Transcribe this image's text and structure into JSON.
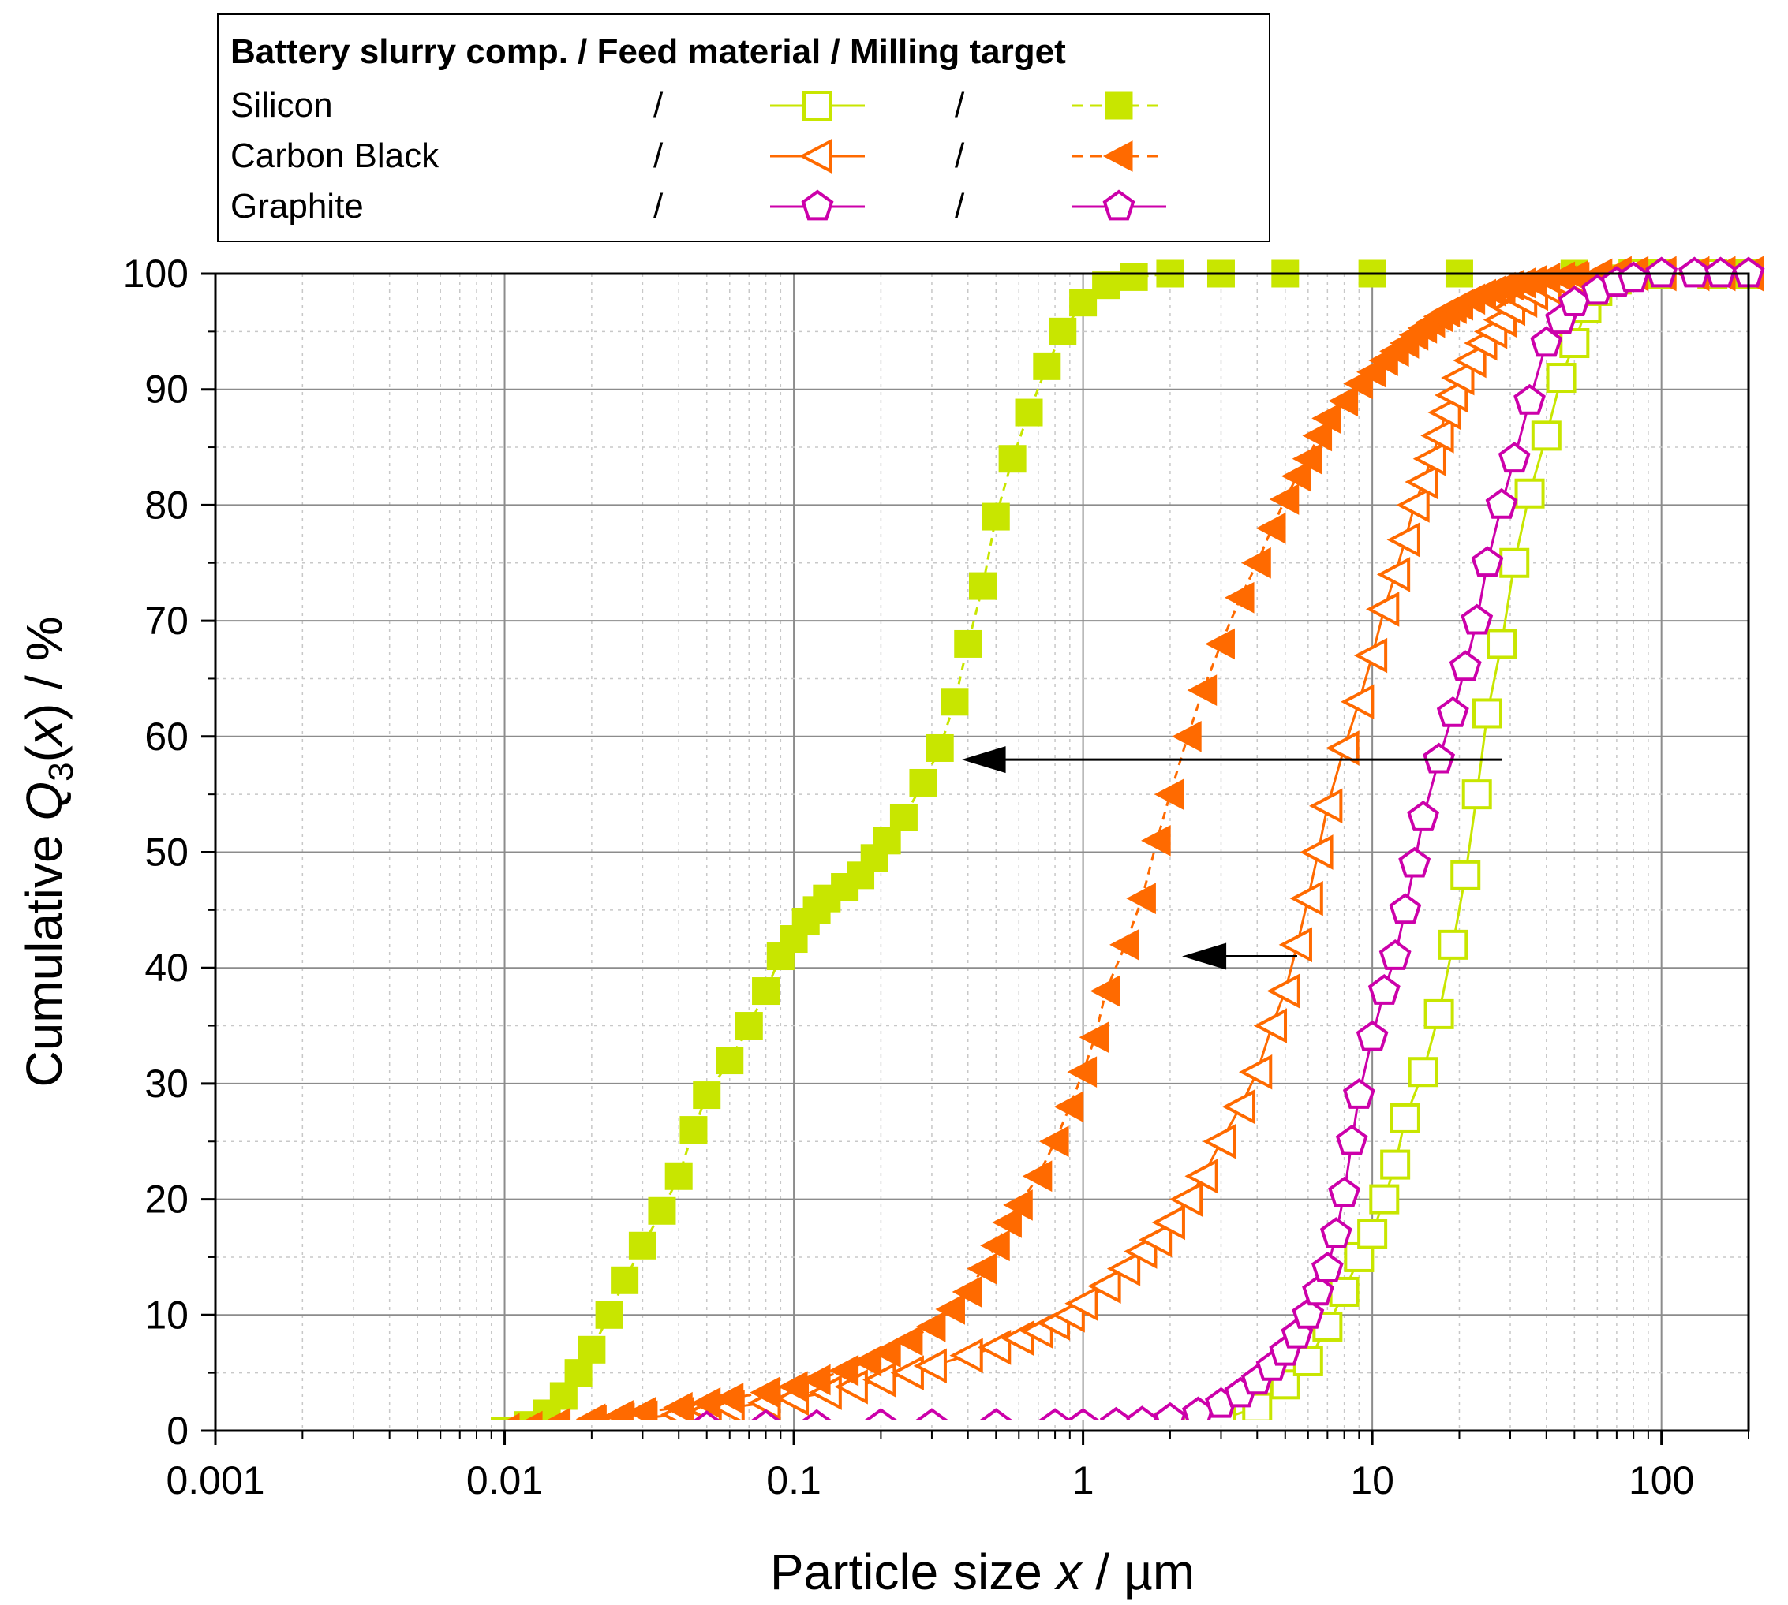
{
  "chart_data": {
    "type": "line",
    "title": "",
    "xlabel_parts": [
      "Particle size ",
      "x",
      " / µm"
    ],
    "ylabel_parts": [
      "Cumulative ",
      "Q",
      "3",
      "(",
      "x",
      ") / %"
    ],
    "x_scale": "log",
    "xlim": [
      0.001,
      200
    ],
    "ylim": [
      0,
      100
    ],
    "x_ticks": [
      0.001,
      0.01,
      0.1,
      1,
      10,
      100
    ],
    "x_tick_labels": [
      "0.001",
      "0.01",
      "0.1",
      "1",
      "10",
      "100"
    ],
    "y_ticks": [
      0,
      10,
      20,
      30,
      40,
      50,
      60,
      70,
      80,
      90,
      100
    ],
    "y_tick_labels": [
      "0",
      "10",
      "20",
      "30",
      "40",
      "50",
      "60",
      "70",
      "80",
      "90",
      "100"
    ],
    "grid": true,
    "legend": {
      "placement": "top-left, above plot",
      "header": "Battery slurry comp. / Feed material / Milling target",
      "separator": "/",
      "rows": [
        {
          "component": "Silicon",
          "color": "#c8e600",
          "feed_marker": "square-open",
          "target_marker": "square-filled"
        },
        {
          "component": "Carbon Black",
          "color": "#ff6a00",
          "feed_marker": "triangle-left-open",
          "target_marker": "triangle-left-filled"
        },
        {
          "component": "Graphite",
          "color": "#cc00aa",
          "feed_marker": "pentagon-open",
          "target_marker": "pentagon-open"
        }
      ]
    },
    "series": [
      {
        "name": "Silicon feed material",
        "color": "#c8e600",
        "marker": "square-open",
        "line": "solid",
        "x": [
          1.5,
          2,
          3,
          4,
          5,
          6,
          7,
          8,
          9,
          10,
          11,
          12,
          13,
          15,
          17,
          19,
          21,
          23,
          25,
          28,
          31,
          35,
          40,
          45,
          50,
          55,
          60,
          70,
          80,
          100,
          150,
          200
        ],
        "y": [
          0,
          0.3,
          1,
          2,
          4,
          6,
          9,
          12,
          15,
          17,
          20,
          23,
          27,
          31,
          36,
          42,
          48,
          55,
          62,
          68,
          75,
          81,
          86,
          91,
          94,
          97,
          98.5,
          99.5,
          100,
          100,
          100,
          100
        ]
      },
      {
        "name": "Silicon milling target",
        "color": "#c8e600",
        "marker": "square-filled",
        "line": "dashed",
        "x": [
          0.01,
          0.012,
          0.014,
          0.016,
          0.018,
          0.02,
          0.023,
          0.026,
          0.03,
          0.035,
          0.04,
          0.045,
          0.05,
          0.06,
          0.07,
          0.08,
          0.09,
          0.1,
          0.11,
          0.12,
          0.13,
          0.15,
          0.17,
          0.19,
          0.21,
          0.24,
          0.28,
          0.32,
          0.36,
          0.4,
          0.45,
          0.5,
          0.57,
          0.65,
          0.75,
          0.85,
          1.0,
          1.2,
          1.5,
          2,
          3,
          5,
          10,
          20,
          50,
          100,
          200
        ],
        "y": [
          0,
          0.5,
          1.5,
          3,
          5,
          7,
          10,
          13,
          16,
          19,
          22,
          26,
          29,
          32,
          35,
          38,
          41,
          42.5,
          44,
          45,
          46,
          47,
          48,
          49.5,
          51,
          53,
          56,
          59,
          63,
          68,
          73,
          79,
          84,
          88,
          92,
          95,
          97.5,
          99,
          99.7,
          100,
          100,
          100,
          100,
          100,
          100,
          100,
          100
        ]
      },
      {
        "name": "Carbon Black feed material",
        "color": "#ff6a00",
        "marker": "triangle-left-open",
        "line": "solid",
        "x": [
          0.01,
          0.012,
          0.015,
          0.02,
          0.025,
          0.03,
          0.04,
          0.05,
          0.06,
          0.08,
          0.1,
          0.13,
          0.16,
          0.2,
          0.25,
          0.3,
          0.4,
          0.5,
          0.6,
          0.7,
          0.8,
          0.9,
          1.0,
          1.2,
          1.4,
          1.6,
          1.8,
          2.0,
          2.3,
          2.6,
          3.0,
          3.5,
          4.0,
          4.5,
          5.0,
          5.5,
          6.0,
          6.5,
          7.0,
          8.0,
          9.0,
          10,
          11,
          12,
          13,
          14,
          15,
          16,
          17,
          18,
          19,
          20,
          22,
          24,
          26,
          28,
          30,
          33,
          36,
          40,
          45,
          50,
          60,
          70,
          80,
          100,
          130,
          160,
          200
        ],
        "y": [
          0,
          0.2,
          0.4,
          0.7,
          0.9,
          1.1,
          1.4,
          1.7,
          2.0,
          2.4,
          2.8,
          3.3,
          3.8,
          4.4,
          5.0,
          5.6,
          6.5,
          7.2,
          8.0,
          8.6,
          9.3,
          10,
          11,
          12.5,
          14,
          15.5,
          16.5,
          18,
          20,
          22,
          25,
          28,
          31,
          35,
          38,
          42,
          46,
          50,
          54,
          59,
          63,
          67,
          71,
          74,
          77,
          80,
          82,
          84,
          86,
          88,
          89.5,
          91,
          92.5,
          94,
          95,
          96,
          97,
          97.7,
          98.3,
          98.8,
          99.2,
          99.5,
          99.8,
          100,
          100,
          100,
          100,
          100,
          100
        ]
      },
      {
        "name": "Carbon Black milling target",
        "color": "#ff6a00",
        "marker": "triangle-left-filled",
        "line": "dashed",
        "x": [
          0.01,
          0.012,
          0.015,
          0.02,
          0.025,
          0.03,
          0.04,
          0.05,
          0.06,
          0.08,
          0.1,
          0.12,
          0.15,
          0.18,
          0.21,
          0.25,
          0.3,
          0.35,
          0.4,
          0.45,
          0.5,
          0.55,
          0.6,
          0.7,
          0.8,
          0.9,
          1.0,
          1.1,
          1.2,
          1.4,
          1.6,
          1.8,
          2.0,
          2.3,
          2.6,
          3.0,
          3.5,
          4.0,
          4.5,
          5.0,
          5.5,
          6.0,
          6.5,
          7.0,
          8.0,
          9.0,
          10,
          11,
          12,
          13,
          14,
          15,
          16,
          17,
          18,
          19,
          20,
          22,
          24,
          26,
          28,
          30,
          33,
          36,
          40,
          45,
          50,
          60,
          70,
          80,
          100,
          130,
          160,
          200
        ],
        "y": [
          0,
          0.3,
          0.6,
          1,
          1.3,
          1.6,
          2.0,
          2.4,
          2.8,
          3.3,
          3.8,
          4.4,
          5.2,
          6.0,
          6.8,
          7.8,
          9.0,
          10.5,
          12,
          14,
          16,
          18,
          19.5,
          22,
          25,
          28,
          31,
          34,
          38,
          42,
          46,
          51,
          55,
          60,
          64,
          68,
          72,
          75,
          78,
          80.5,
          82.5,
          84,
          86,
          87.5,
          89,
          90.5,
          91.5,
          92.5,
          93.3,
          94,
          94.7,
          95.3,
          95.8,
          96.3,
          96.7,
          97,
          97.3,
          97.8,
          98.2,
          98.5,
          98.8,
          99,
          99.2,
          99.4,
          99.6,
          99.7,
          99.8,
          99.9,
          100,
          100,
          100,
          100,
          100,
          100
        ]
      },
      {
        "name": "Graphite feed material",
        "color": "#cc00aa",
        "marker": "pentagon-open",
        "line": "solid",
        "x": [
          0.05,
          0.08,
          0.12,
          0.2,
          0.3,
          0.5,
          0.8,
          1.0,
          1.3,
          1.6,
          2.0,
          2.5,
          3.0,
          3.5,
          4.0,
          4.5,
          5.0,
          5.5,
          6.0,
          6.5,
          7.0,
          7.5,
          8.0,
          8.5,
          9.0,
          10,
          11,
          12,
          13,
          14,
          15,
          17,
          19,
          21,
          23,
          25,
          28,
          31,
          35,
          40,
          45,
          50,
          60,
          70,
          80,
          100,
          130,
          160,
          200
        ],
        "y": [
          0.3,
          0.4,
          0.4,
          0.5,
          0.5,
          0.5,
          0.5,
          0.5,
          0.6,
          0.7,
          1,
          1.5,
          2.3,
          3.2,
          4.3,
          5.5,
          6.8,
          8.3,
          10,
          12,
          14,
          17,
          20.5,
          25,
          29,
          34,
          38,
          41,
          45,
          49,
          53,
          58,
          62,
          66,
          70,
          75,
          80,
          84,
          89,
          94,
          96,
          97.5,
          98.5,
          99.2,
          99.6,
          100,
          100,
          100,
          100
        ]
      }
    ],
    "annotations": [
      {
        "type": "arrow",
        "from": [
          28,
          58
        ],
        "to": [
          0.38,
          58
        ],
        "color": "#000000"
      },
      {
        "type": "arrow",
        "from": [
          5.5,
          41
        ],
        "to": [
          2.2,
          41
        ],
        "color": "#000000"
      }
    ]
  }
}
